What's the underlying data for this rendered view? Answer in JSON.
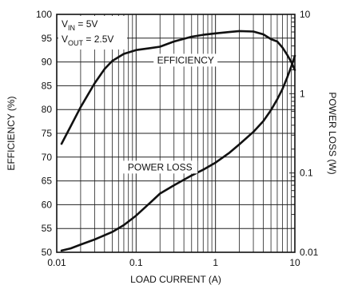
{
  "chart_data": {
    "type": "line",
    "xlabel": "LOAD CURRENT (A)",
    "ylabel": "EFFICIENCY (%)",
    "y2label": "POWER LOSS (W)",
    "x_scale": "log",
    "xlim": [
      0.01,
      10
    ],
    "ylim": [
      50,
      100
    ],
    "y2_scale": "log",
    "y2lim": [
      0.01,
      10
    ],
    "grid": true,
    "x_ticks": [
      0.01,
      0.1,
      1,
      10
    ],
    "x_tick_labels": [
      "0.01",
      "0.1",
      "1",
      "10"
    ],
    "y_ticks": [
      50,
      55,
      60,
      65,
      70,
      75,
      80,
      85,
      90,
      95,
      100
    ],
    "y_tick_labels": [
      "50",
      "55",
      "60",
      "65",
      "70",
      "75",
      "80",
      "85",
      "90",
      "95",
      "100"
    ],
    "y2_ticks": [
      0.01,
      0.1,
      1,
      10
    ],
    "y2_tick_labels": [
      "0.01",
      "0.1",
      "1",
      "10"
    ],
    "conditions": [
      {
        "text": "V",
        "sub": "IN",
        "rest": " = 5V"
      },
      {
        "text": "V",
        "sub": "OUT",
        "rest": " = 2.5V"
      }
    ],
    "series": [
      {
        "name": "EFFICIENCY",
        "axis": "left",
        "x": [
          0.0115,
          0.015,
          0.02,
          0.03,
          0.04,
          0.05,
          0.07,
          0.1,
          0.15,
          0.2,
          0.3,
          0.5,
          0.7,
          1,
          1.5,
          2,
          3,
          4,
          5,
          6,
          7,
          8,
          9,
          10
        ],
        "y": [
          72.8,
          76.5,
          80.5,
          85.5,
          88.5,
          90.2,
          91.7,
          92.5,
          92.9,
          93.2,
          94.3,
          95.3,
          95.7,
          96.0,
          96.3,
          96.5,
          96.4,
          95.8,
          94.8,
          94.3,
          93.0,
          91.5,
          90.0,
          88.3
        ]
      },
      {
        "name": "POWER LOSS",
        "axis": "right",
        "x": [
          0.0115,
          0.015,
          0.02,
          0.03,
          0.05,
          0.07,
          0.1,
          0.15,
          0.2,
          0.3,
          0.5,
          0.7,
          1,
          1.5,
          2,
          3,
          4,
          5,
          6,
          7,
          8,
          9,
          10
        ],
        "y": [
          0.0105,
          0.0112,
          0.0125,
          0.0145,
          0.018,
          0.022,
          0.029,
          0.042,
          0.055,
          0.07,
          0.093,
          0.11,
          0.135,
          0.18,
          0.23,
          0.33,
          0.45,
          0.62,
          0.85,
          1.15,
          1.6,
          2.2,
          3.0
        ]
      }
    ],
    "annotations": [
      "EFFICIENCY",
      "POWER LOSS"
    ]
  }
}
